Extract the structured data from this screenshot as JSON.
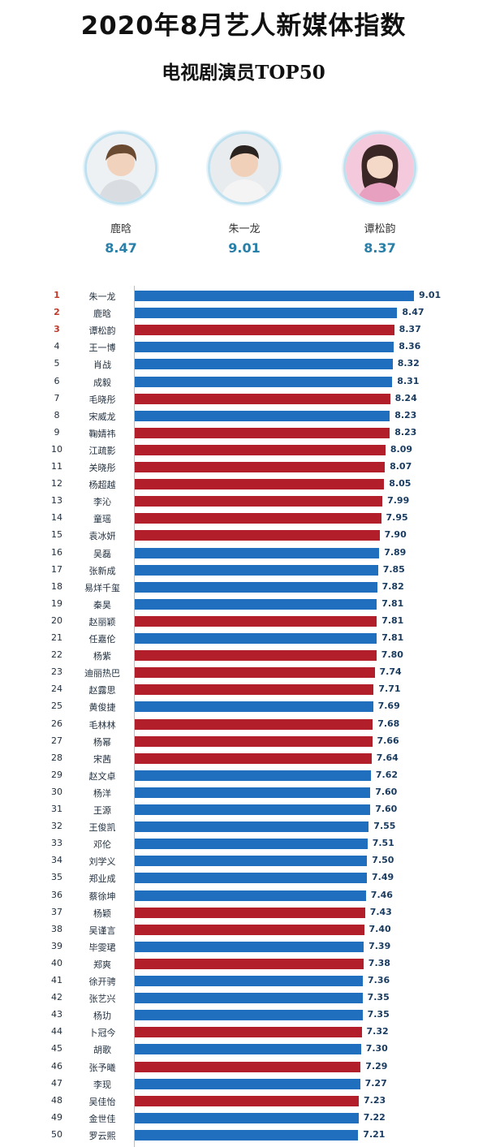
{
  "header": {
    "title": "2020年8月艺人新媒体指数",
    "subtitle": "电视剧演员TOP50"
  },
  "colors": {
    "male": "#1f6fbe",
    "female": "#b21f2a",
    "accent": "#2a7fa8"
  },
  "podium": [
    {
      "name": "鹿晗",
      "score": "8.47"
    },
    {
      "name": "朱一龙",
      "score": "9.01"
    },
    {
      "name": "谭松韵",
      "score": "8.37"
    }
  ],
  "chart_data": {
    "type": "bar",
    "orientation": "horizontal",
    "title": "电视剧演员TOP50",
    "categories": [
      "朱一龙",
      "鹿晗",
      "谭松韵",
      "王一博",
      "肖战",
      "成毅",
      "毛晓彤",
      "宋威龙",
      "鞠婧祎",
      "江疏影",
      "关晓彤",
      "杨超越",
      "李沁",
      "童瑶",
      "袁冰妍",
      "吴磊",
      "张新成",
      "易烊千玺",
      "秦昊",
      "赵丽颖",
      "任嘉伦",
      "杨紫",
      "迪丽热巴",
      "赵露思",
      "黄俊捷",
      "毛林林",
      "杨幂",
      "宋茜",
      "赵文卓",
      "杨洋",
      "王源",
      "王俊凯",
      "邓伦",
      "刘学义",
      "郑业成",
      "蔡徐坤",
      "杨颖",
      "吴谨言",
      "毕雯珺",
      "郑爽",
      "徐开骋",
      "张艺兴",
      "杨玏",
      "卜冠今",
      "胡歌",
      "张予曦",
      "李现",
      "吴佳怡",
      "金世佳",
      "罗云熙"
    ],
    "values": [
      9.01,
      8.47,
      8.37,
      8.36,
      8.32,
      8.31,
      8.24,
      8.23,
      8.23,
      8.09,
      8.07,
      8.05,
      7.99,
      7.95,
      7.9,
      7.89,
      7.85,
      7.82,
      7.81,
      7.81,
      7.81,
      7.8,
      7.74,
      7.71,
      7.69,
      7.68,
      7.66,
      7.64,
      7.62,
      7.6,
      7.6,
      7.55,
      7.51,
      7.5,
      7.49,
      7.46,
      7.43,
      7.4,
      7.39,
      7.38,
      7.36,
      7.35,
      7.35,
      7.32,
      7.3,
      7.29,
      7.27,
      7.23,
      7.22,
      7.21
    ],
    "labels": [
      "9.01",
      "8.47",
      "8.37",
      "8.36",
      "8.32",
      "8.31",
      "8.24",
      "8.23",
      "8.23",
      "8.09",
      "8.07",
      "8.05",
      "7.99",
      "7.95",
      "7.90",
      "7.89",
      "7.85",
      "7.82",
      "7.81",
      "7.81",
      "7.81",
      "7.80",
      "7.74",
      "7.71",
      "7.69",
      "7.68",
      "7.66",
      "7.64",
      "7.62",
      "7.60",
      "7.60",
      "7.55",
      "7.51",
      "7.50",
      "7.49",
      "7.46",
      "7.43",
      "7.40",
      "7.39",
      "7.38",
      "7.36",
      "7.35",
      "7.35",
      "7.32",
      "7.30",
      "7.29",
      "7.27",
      "7.23",
      "7.22",
      "7.21"
    ],
    "bar_colors": [
      "#1f6fbe",
      "#1f6fbe",
      "#b21f2a",
      "#1f6fbe",
      "#1f6fbe",
      "#1f6fbe",
      "#b21f2a",
      "#1f6fbe",
      "#b21f2a",
      "#b21f2a",
      "#b21f2a",
      "#b21f2a",
      "#b21f2a",
      "#b21f2a",
      "#b21f2a",
      "#1f6fbe",
      "#1f6fbe",
      "#1f6fbe",
      "#1f6fbe",
      "#b21f2a",
      "#1f6fbe",
      "#b21f2a",
      "#b21f2a",
      "#b21f2a",
      "#1f6fbe",
      "#b21f2a",
      "#b21f2a",
      "#b21f2a",
      "#1f6fbe",
      "#1f6fbe",
      "#1f6fbe",
      "#1f6fbe",
      "#1f6fbe",
      "#1f6fbe",
      "#1f6fbe",
      "#1f6fbe",
      "#b21f2a",
      "#b21f2a",
      "#1f6fbe",
      "#b21f2a",
      "#1f6fbe",
      "#1f6fbe",
      "#1f6fbe",
      "#b21f2a",
      "#1f6fbe",
      "#b21f2a",
      "#1f6fbe",
      "#b21f2a",
      "#1f6fbe",
      "#1f6fbe"
    ],
    "grid": false,
    "legend": "none"
  }
}
